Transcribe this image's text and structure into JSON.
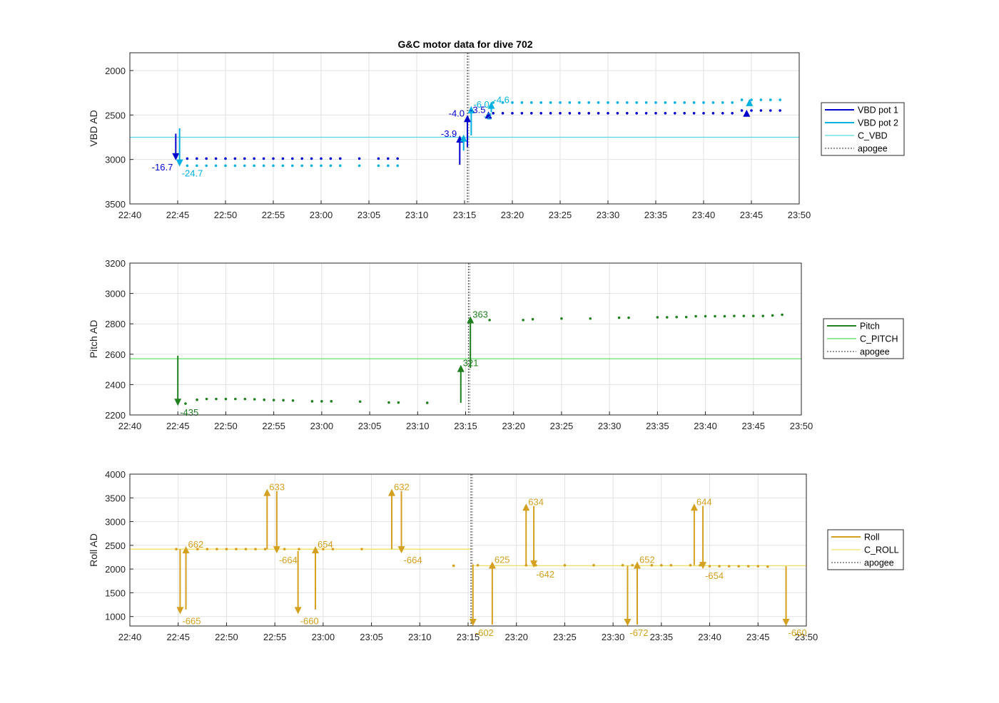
{
  "figure_title": "G&C motor data for dive 702",
  "chart_data": [
    {
      "type": "scatter",
      "ylabel": "VBD AD",
      "xlabel": "",
      "xticks": [
        "22:40",
        "22:45",
        "22:50",
        "22:55",
        "23:00",
        "23:05",
        "23:10",
        "23:15",
        "23:20",
        "23:25",
        "23:30",
        "23:35",
        "23:40",
        "23:45",
        "23:50"
      ],
      "xlim": [
        0,
        70
      ],
      "yticks": [
        "2000",
        "2500",
        "3000",
        "3500"
      ],
      "ylim": [
        3500,
        1800
      ],
      "y_reversed": true,
      "grid": true,
      "legend_position": "right",
      "legend": [
        {
          "label": "VBD pot 1",
          "color": "#0000cc",
          "style": "line"
        },
        {
          "label": "VBD pot 2",
          "color": "#00b0e0",
          "style": "line"
        },
        {
          "label": "C_VBD",
          "color": "#5ad6e6",
          "style": "thin"
        },
        {
          "label": "apogee",
          "color": "#555555",
          "style": "dash"
        }
      ],
      "reference_line": {
        "name": "C_VBD",
        "y": 2750,
        "color": "#5ad6e6"
      },
      "apogee_minute": 35.3,
      "series": [
        {
          "color": "#0000cc",
          "dot_y": 2990,
          "x": [
            6,
            7,
            8,
            9,
            10,
            11,
            12,
            13,
            14,
            15,
            16,
            17,
            18,
            19,
            20,
            21,
            22,
            24,
            26,
            27,
            28,
            38,
            39,
            40,
            41,
            42,
            43,
            44,
            45,
            46,
            47,
            48,
            49,
            50,
            51,
            52,
            53,
            54,
            55,
            56,
            57,
            58,
            59,
            60,
            61,
            62,
            63,
            64,
            65,
            66,
            67,
            68
          ],
          "y": [
            2990,
            2990,
            2990,
            2990,
            2990,
            2990,
            2990,
            2990,
            2990,
            2990,
            2990,
            2990,
            2990,
            2990,
            2990,
            2990,
            2990,
            2990,
            2990,
            2990,
            2990,
            2480,
            2480,
            2480,
            2480,
            2480,
            2480,
            2480,
            2480,
            2480,
            2480,
            2480,
            2480,
            2480,
            2480,
            2480,
            2480,
            2480,
            2480,
            2480,
            2480,
            2480,
            2480,
            2480,
            2480,
            2480,
            2480,
            2450,
            2450,
            2450,
            2450,
            2450
          ]
        },
        {
          "color": "#00b0e0",
          "x": [
            6,
            7,
            8,
            9,
            10,
            11,
            12,
            13,
            14,
            15,
            16,
            17,
            18,
            19,
            20,
            21,
            22,
            24,
            26,
            27,
            28,
            38,
            39,
            40,
            41,
            42,
            43,
            44,
            45,
            46,
            47,
            48,
            49,
            50,
            51,
            52,
            53,
            54,
            55,
            56,
            57,
            58,
            59,
            60,
            61,
            62,
            63,
            64,
            65,
            66,
            67,
            68
          ],
          "y": [
            3070,
            3070,
            3070,
            3070,
            3070,
            3070,
            3070,
            3070,
            3070,
            3070,
            3070,
            3070,
            3070,
            3070,
            3070,
            3070,
            3070,
            3070,
            3070,
            3070,
            3070,
            2360,
            2360,
            2360,
            2360,
            2360,
            2360,
            2360,
            2360,
            2360,
            2360,
            2360,
            2360,
            2360,
            2360,
            2360,
            2360,
            2360,
            2360,
            2360,
            2360,
            2360,
            2360,
            2360,
            2360,
            2360,
            2360,
            2330,
            2330,
            2330,
            2330,
            2330
          ]
        }
      ],
      "arrows": [
        {
          "x": 4.8,
          "y0": 2710,
          "y1": 3010,
          "color": "#0000cc",
          "label": "-16.7",
          "side": "left"
        },
        {
          "x": 5.2,
          "y0": 2650,
          "y1": 3080,
          "color": "#00b0e0",
          "label": "-24.7",
          "side": "right"
        },
        {
          "x": 34.5,
          "y0": 3060,
          "y1": 2730,
          "color": "#0000cc",
          "label": "-3.9",
          "side": "left"
        },
        {
          "x": 34.9,
          "y0": 2900,
          "y1": 2720,
          "color": "#00b0e0",
          "label": "",
          "side": "right"
        },
        {
          "x": 35.3,
          "y0": 2860,
          "y1": 2500,
          "color": "#0000cc",
          "label": "-4.0",
          "side": "left"
        },
        {
          "x": 35.7,
          "y0": 2730,
          "y1": 2400,
          "color": "#00b0e0",
          "label": "-6.0",
          "side": "right"
        },
        {
          "x": 37.5,
          "y0": 2520,
          "y1": 2460,
          "color": "#0000cc",
          "label": "-3.5",
          "side": "left"
        },
        {
          "x": 37.8,
          "y0": 2470,
          "y1": 2350,
          "color": "#00b0e0",
          "label": "-4.6",
          "side": "right"
        },
        {
          "x": 64.5,
          "y0": 2480,
          "y1": 2440,
          "color": "#0000cc",
          "label": "",
          "side": "right"
        },
        {
          "x": 64.8,
          "y0": 2360,
          "y1": 2320,
          "color": "#00b0e0",
          "label": "",
          "side": "right"
        }
      ],
      "extra_labels": [
        {
          "text": "-2",
          "x": 37.0,
          "y": 2510,
          "color": "#00b0e0"
        }
      ]
    },
    {
      "type": "scatter",
      "ylabel": "Pitch AD",
      "xlabel": "",
      "xticks": [
        "22:40",
        "22:45",
        "22:50",
        "22:55",
        "23:00",
        "23:05",
        "23:10",
        "23:15",
        "23:20",
        "23:25",
        "23:30",
        "23:35",
        "23:40",
        "23:45",
        "23:50"
      ],
      "xlim": [
        0,
        70
      ],
      "yticks": [
        "2200",
        "2400",
        "2600",
        "2800",
        "3000",
        "3200"
      ],
      "ylim": [
        2200,
        3200
      ],
      "y_reversed": false,
      "grid": true,
      "legend_position": "right",
      "legend": [
        {
          "label": "Pitch",
          "color": "#208020",
          "style": "line"
        },
        {
          "label": "C_PITCH",
          "color": "#55dd55",
          "style": "thin"
        },
        {
          "label": "apogee",
          "color": "#555555",
          "style": "dash"
        }
      ],
      "reference_line": {
        "name": "C_PITCH",
        "y": 2570,
        "color": "#55dd55"
      },
      "apogee_minute": 35.3,
      "series": [
        {
          "color": "#208020",
          "x": [
            5.8,
            7,
            8,
            9,
            10,
            11,
            12,
            13,
            14,
            15,
            16,
            17,
            19,
            20,
            21,
            24,
            27,
            28,
            31,
            37.5,
            41,
            42,
            45,
            48,
            51,
            52,
            55,
            56,
            57,
            58,
            59,
            60,
            61,
            62,
            63,
            64,
            65,
            66,
            67,
            68
          ],
          "y": [
            2275,
            2300,
            2305,
            2305,
            2305,
            2305,
            2305,
            2303,
            2300,
            2298,
            2297,
            2295,
            2290,
            2290,
            2290,
            2288,
            2282,
            2282,
            2280,
            2825,
            2825,
            2830,
            2835,
            2835,
            2840,
            2840,
            2843,
            2843,
            2845,
            2845,
            2850,
            2850,
            2850,
            2850,
            2852,
            2852,
            2852,
            2852,
            2855,
            2860
          ]
        }
      ],
      "arrows": [
        {
          "x": 5.0,
          "y0": 2590,
          "y1": 2260,
          "color": "#208020",
          "label": "-435",
          "side": "right"
        },
        {
          "x": 34.5,
          "y0": 2280,
          "y1": 2530,
          "color": "#208020",
          "label": "321",
          "side": "right"
        },
        {
          "x": 35.5,
          "y0": 2510,
          "y1": 2850,
          "color": "#208020",
          "label": "363",
          "side": "right"
        }
      ]
    },
    {
      "type": "scatter",
      "ylabel": "Roll AD",
      "xlabel": "",
      "xticks": [
        "22:40",
        "22:45",
        "22:50",
        "22:55",
        "23:00",
        "23:05",
        "23:10",
        "23:15",
        "23:20",
        "23:25",
        "23:30",
        "23:35",
        "23:40",
        "23:45",
        "23:50"
      ],
      "xlim": [
        0,
        70
      ],
      "yticks": [
        "1000",
        "1500",
        "2000",
        "2500",
        "3000",
        "3500",
        "4000"
      ],
      "ylim": [
        800,
        4000
      ],
      "y_reversed": false,
      "grid": true,
      "legend_position": "right",
      "legend": [
        {
          "label": "Roll",
          "color": "#d4a020",
          "style": "line"
        },
        {
          "label": "C_ROLL",
          "color": "#f2e06a",
          "style": "thin"
        },
        {
          "label": "apogee",
          "color": "#555555",
          "style": "dash"
        }
      ],
      "reference_segments": [
        {
          "name": "C_ROLL",
          "x0": 0,
          "x1": 35.3,
          "y": 2420,
          "color": "#f2e06a"
        },
        {
          "name": "C_ROLL",
          "x0": 35.3,
          "x1": 70,
          "y": 2070,
          "color": "#f2e06a"
        }
      ],
      "apogee_minute": 35.3,
      "series": [
        {
          "color": "#d4a020",
          "x": [
            4.8,
            7,
            8,
            9,
            10,
            11,
            12,
            13,
            14,
            16,
            17.5,
            20,
            21,
            24,
            33.5,
            36,
            41,
            42,
            45,
            48,
            51,
            52,
            54,
            55,
            56,
            58,
            59,
            60,
            61,
            62,
            63,
            64,
            65,
            66
          ],
          "y": [
            2420,
            2420,
            2420,
            2420,
            2420,
            2420,
            2420,
            2420,
            2420,
            2420,
            2420,
            2420,
            2420,
            2420,
            2070,
            2080,
            2080,
            2080,
            2080,
            2080,
            2080,
            2080,
            2080,
            2080,
            2080,
            2080,
            2080,
            2060,
            2060,
            2060,
            2060,
            2060,
            2060,
            2050
          ]
        }
      ],
      "arrows": [
        {
          "x": 5.2,
          "y0": 2420,
          "y1": 1050,
          "color": "#d4a020",
          "label": "-665",
          "side": "right"
        },
        {
          "x": 5.8,
          "y0": 1150,
          "y1": 2480,
          "color": "#d4a020",
          "label": "662",
          "side": "right"
        },
        {
          "x": 14.2,
          "y0": 2420,
          "y1": 3690,
          "color": "#d4a020",
          "label": "633",
          "side": "right"
        },
        {
          "x": 15.2,
          "y0": 3640,
          "y1": 2330,
          "color": "#d4a020",
          "label": "-664",
          "side": "right"
        },
        {
          "x": 17.4,
          "y0": 2380,
          "y1": 1050,
          "color": "#d4a020",
          "label": "-660",
          "side": "right"
        },
        {
          "x": 19.2,
          "y0": 1150,
          "y1": 2480,
          "color": "#d4a020",
          "label": "654",
          "side": "right"
        },
        {
          "x": 27.1,
          "y0": 2420,
          "y1": 3690,
          "color": "#d4a020",
          "label": "632",
          "side": "right"
        },
        {
          "x": 28.1,
          "y0": 3640,
          "y1": 2330,
          "color": "#d4a020",
          "label": "-664",
          "side": "right"
        },
        {
          "x": 35.5,
          "y0": 2100,
          "y1": 800,
          "color": "#d4a020",
          "label": "-602",
          "side": "right"
        },
        {
          "x": 37.5,
          "y0": 830,
          "y1": 2160,
          "color": "#d4a020",
          "label": "625",
          "side": "right"
        },
        {
          "x": 41.0,
          "y0": 2080,
          "y1": 3380,
          "color": "#d4a020",
          "label": "634",
          "side": "right"
        },
        {
          "x": 41.8,
          "y0": 3330,
          "y1": 2030,
          "color": "#d4a020",
          "label": "-642",
          "side": "right"
        },
        {
          "x": 51.5,
          "y0": 2070,
          "y1": 800,
          "color": "#d4a020",
          "label": "-672",
          "side": "right"
        },
        {
          "x": 52.5,
          "y0": 830,
          "y1": 2160,
          "color": "#d4a020",
          "label": "652",
          "side": "right"
        },
        {
          "x": 58.4,
          "y0": 2080,
          "y1": 3380,
          "color": "#d4a020",
          "label": "644",
          "side": "right"
        },
        {
          "x": 59.3,
          "y0": 3330,
          "y1": 2000,
          "color": "#d4a020",
          "label": "-654",
          "side": "right"
        },
        {
          "x": 67.9,
          "y0": 2060,
          "y1": 800,
          "color": "#d4a020",
          "label": "-660",
          "side": "right"
        }
      ]
    }
  ]
}
